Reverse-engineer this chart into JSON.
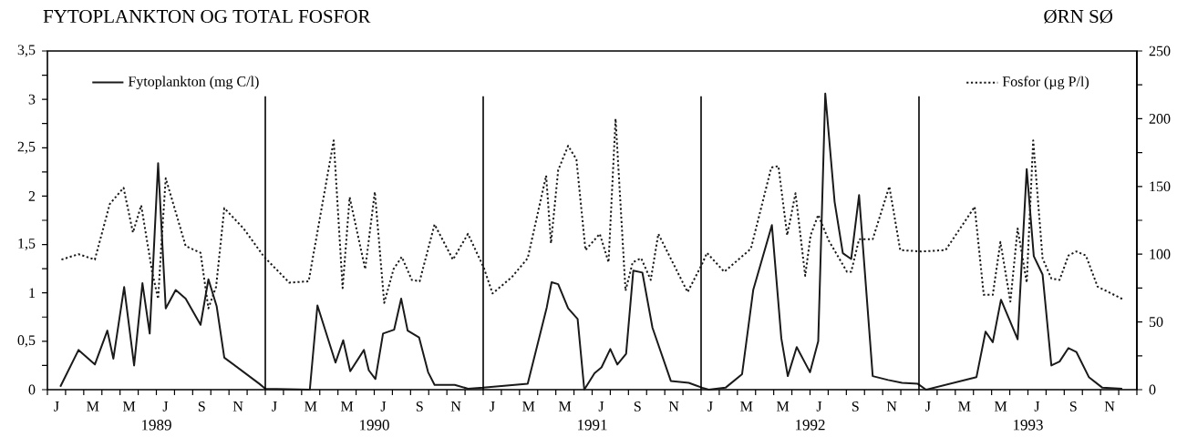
{
  "chart_data": {
    "type": "line",
    "title": "FYTOPLANKTON OG TOTAL FOSFOR",
    "subtitle": "ØRN SØ",
    "annotations": [
      "J",
      "M",
      "M",
      "J",
      "S",
      "N",
      "J",
      "M",
      "M",
      "J",
      "S",
      "N",
      "J",
      "M",
      "M",
      "J",
      "S",
      "N",
      "J",
      "M",
      "M",
      "J",
      "S",
      "N",
      "J",
      "M",
      "M",
      "J",
      "S",
      "N"
    ],
    "legend": "top",
    "xlim": [
      "1989-01-01",
      "1994-01-01"
    ],
    "xticks": [
      {
        "value": "1989-01-01",
        "label": null
      },
      {
        "value": "1989-02-01",
        "label": null
      },
      {
        "value": "1989-03-01",
        "label": null
      },
      {
        "value": "1989-04-01",
        "label": null
      },
      {
        "value": "1989-05-01",
        "label": null
      },
      {
        "value": "1989-06-01",
        "label": null
      },
      {
        "value": "1989-07-01",
        "label": "1989"
      },
      {
        "value": "1989-08-01",
        "label": null
      },
      {
        "value": "1989-09-01",
        "label": null
      },
      {
        "value": "1989-10-01",
        "label": null
      },
      {
        "value": "1989-11-01",
        "label": null
      },
      {
        "value": "1989-12-01",
        "label": null
      },
      {
        "value": "1990-01-01",
        "label": null
      },
      {
        "value": "1990-02-01",
        "label": null
      },
      {
        "value": "1990-03-01",
        "label": null
      },
      {
        "value": "1990-04-01",
        "label": null
      },
      {
        "value": "1990-05-01",
        "label": null
      },
      {
        "value": "1990-06-01",
        "label": null
      },
      {
        "value": "1990-07-01",
        "label": "1990"
      },
      {
        "value": "1990-08-01",
        "label": null
      },
      {
        "value": "1990-09-01",
        "label": null
      },
      {
        "value": "1990-10-01",
        "label": null
      },
      {
        "value": "1990-11-01",
        "label": null
      },
      {
        "value": "1990-12-01",
        "label": null
      },
      {
        "value": "1991-01-01",
        "label": null
      },
      {
        "value": "1991-02-01",
        "label": null
      },
      {
        "value": "1991-03-01",
        "label": null
      },
      {
        "value": "1991-04-01",
        "label": null
      },
      {
        "value": "1991-05-01",
        "label": null
      },
      {
        "value": "1991-06-01",
        "label": null
      },
      {
        "value": "1991-07-01",
        "label": "1991"
      },
      {
        "value": "1991-08-01",
        "label": null
      },
      {
        "value": "1991-09-01",
        "label": null
      },
      {
        "value": "1991-10-01",
        "label": null
      },
      {
        "value": "1991-11-01",
        "label": null
      },
      {
        "value": "1991-12-01",
        "label": null
      },
      {
        "value": "1992-01-01",
        "label": null
      },
      {
        "value": "1992-02-01",
        "label": null
      },
      {
        "value": "1992-03-01",
        "label": null
      },
      {
        "value": "1992-04-01",
        "label": null
      },
      {
        "value": "1992-05-01",
        "label": null
      },
      {
        "value": "1992-06-01",
        "label": null
      },
      {
        "value": "1992-07-01",
        "label": "1992"
      },
      {
        "value": "1992-08-01",
        "label": null
      },
      {
        "value": "1992-09-01",
        "label": null
      },
      {
        "value": "1992-10-01",
        "label": null
      },
      {
        "value": "1992-11-01",
        "label": null
      },
      {
        "value": "1992-12-01",
        "label": null
      },
      {
        "value": "1993-01-01",
        "label": null
      },
      {
        "value": "1993-02-01",
        "label": null
      },
      {
        "value": "1993-03-01",
        "label": null
      },
      {
        "value": "1993-04-01",
        "label": null
      },
      {
        "value": "1993-05-01",
        "label": null
      },
      {
        "value": "1993-06-01",
        "label": null
      },
      {
        "value": "1993-07-01",
        "label": "1993"
      },
      {
        "value": "1993-08-01",
        "label": null
      },
      {
        "value": "1993-09-01",
        "label": null
      },
      {
        "value": "1993-10-01",
        "label": null
      },
      {
        "value": "1993-11-01",
        "label": null
      },
      {
        "value": "1993-12-01",
        "label": null
      },
      {
        "value": "1994-01-01",
        "label": null
      }
    ],
    "ylim": [
      0,
      3.5
    ],
    "yticks": [
      {
        "value": 0,
        "label": "0"
      },
      {
        "value": 0.25,
        "label": null
      },
      {
        "value": 0.5,
        "label": "0,5"
      },
      {
        "value": 0.75,
        "label": null
      },
      {
        "value": 1,
        "label": "1"
      },
      {
        "value": 1.25,
        "label": null
      },
      {
        "value": 1.5,
        "label": "1,5"
      },
      {
        "value": 1.75,
        "label": null
      },
      {
        "value": 2,
        "label": "2"
      },
      {
        "value": 2.25,
        "label": null
      },
      {
        "value": 2.5,
        "label": "2,5"
      },
      {
        "value": 2.75,
        "label": null
      },
      {
        "value": 3,
        "label": "3"
      },
      {
        "value": 3.25,
        "label": null
      },
      {
        "value": 3.5,
        "label": "3,5"
      }
    ],
    "y2lim": [
      0,
      250
    ],
    "y2ticks": [
      0,
      {
        "value": 25,
        "label": null
      },
      50,
      {
        "value": 75,
        "label": null
      },
      100,
      {
        "value": 125,
        "label": null
      },
      150,
      {
        "value": 175,
        "label": null
      },
      200,
      {
        "value": 225,
        "label": null
      },
      250
    ],
    "ref_lines": [
      {
        "axis": "x",
        "value": "1990-01-01"
      },
      {
        "axis": "x",
        "value": "1991-01-01"
      },
      {
        "axis": "x",
        "value": "1992-01-01"
      },
      {
        "axis": "x",
        "value": "1993-01-01"
      }
    ],
    "series": [
      {
        "name": "Fytoplankton (mg C/l)",
        "color": "#1a1a1a",
        "line_style": "solid",
        "axis": "y",
        "x": [
          "1989-01-23",
          "1989-02-21",
          "1989-03-20",
          "1989-04-10",
          "1989-04-20",
          "1989-05-08",
          "1989-05-25",
          "1989-06-08",
          "1989-06-20",
          "1989-07-04",
          "1989-07-17",
          "1989-08-03",
          "1989-08-20",
          "1989-09-14",
          "1989-09-27",
          "1989-10-11",
          "1989-10-24",
          "1989-12-22",
          "1990-01-01",
          "1990-03-15",
          "1990-03-28",
          "1990-04-27",
          "1990-05-10",
          "1990-05-22",
          "1990-06-14",
          "1990-06-22",
          "1990-07-03",
          "1990-07-16",
          "1990-08-04",
          "1990-08-16",
          "1990-08-27",
          "1990-09-15",
          "1990-09-30",
          "1990-10-11",
          "1990-11-14",
          "1990-12-06",
          "1991-01-01",
          "1991-03-15",
          "1991-04-16",
          "1991-04-24",
          "1991-05-05",
          "1991-05-22",
          "1991-06-07",
          "1991-06-18",
          "1991-07-05",
          "1991-07-17",
          "1991-08-01",
          "1991-08-13",
          "1991-08-28",
          "1991-09-09",
          "1991-09-24",
          "1991-10-11",
          "1991-11-11",
          "1991-12-11",
          "1992-01-03",
          "1992-01-14",
          "1992-02-11",
          "1992-03-09",
          "1992-03-28",
          "1992-04-28",
          "1992-05-14",
          "1992-05-25",
          "1992-06-09",
          "1992-07-01",
          "1992-07-15",
          "1992-07-27",
          "1992-08-12",
          "1992-08-26",
          "1992-09-09",
          "1992-09-22",
          "1992-10-15",
          "1992-11-10",
          "1992-12-03",
          "1992-12-30",
          "1993-01-13",
          "1993-04-06",
          "1993-04-21",
          "1993-05-03",
          "1993-05-17",
          "1993-06-14",
          "1993-06-29",
          "1993-07-11",
          "1993-07-26",
          "1993-08-10",
          "1993-08-24",
          "1993-09-08",
          "1993-09-21",
          "1993-10-12",
          "1993-11-04",
          "1993-12-07"
        ],
        "values": [
          0.03,
          0.41,
          0.26,
          0.61,
          0.32,
          1.06,
          0.25,
          1.1,
          0.58,
          2.34,
          0.84,
          1.03,
          0.94,
          0.67,
          1.14,
          0.86,
          0.33,
          0.06,
          0.01,
          0.0,
          0.87,
          0.28,
          0.51,
          0.19,
          0.41,
          0.2,
          0.11,
          0.58,
          0.62,
          0.94,
          0.61,
          0.54,
          0.18,
          0.05,
          0.05,
          0.01,
          0.02,
          0.06,
          0.85,
          1.11,
          1.09,
          0.84,
          0.73,
          0.0,
          0.17,
          0.23,
          0.42,
          0.26,
          0.37,
          1.23,
          1.21,
          0.64,
          0.09,
          0.07,
          0.02,
          0.0,
          0.02,
          0.16,
          1.03,
          1.7,
          0.53,
          0.14,
          0.44,
          0.18,
          0.5,
          3.06,
          1.94,
          1.41,
          1.35,
          2.01,
          0.14,
          0.1,
          0.07,
          0.06,
          0.0,
          0.13,
          0.6,
          0.49,
          0.93,
          0.52,
          2.28,
          1.38,
          1.19,
          0.25,
          0.29,
          0.43,
          0.39,
          0.13,
          0.02,
          0.01
        ]
      },
      {
        "name": "Fosfor (µg P/l)",
        "color": "#1a1a1a",
        "line_style": "dotted",
        "axis": "y2",
        "x": [
          "1989-01-25",
          "1989-02-21",
          "1989-03-20",
          "1989-04-14",
          "1989-05-07",
          "1989-05-23",
          "1989-06-06",
          "1989-06-24",
          "1989-07-04",
          "1989-07-10",
          "1989-07-17",
          "1989-07-30",
          "1989-08-20",
          "1989-09-14",
          "1989-09-27",
          "1989-10-10",
          "1989-10-24",
          "1989-11-25",
          "1989-12-30",
          "1990-02-10",
          "1990-03-13",
          "1990-04-24",
          "1990-05-09",
          "1990-05-21",
          "1990-06-16",
          "1990-07-02",
          "1990-07-18",
          "1990-08-03",
          "1990-08-17",
          "1990-09-03",
          "1990-09-16",
          "1990-10-11",
          "1990-11-11",
          "1990-12-06",
          "1991-01-02",
          "1991-01-17",
          "1991-02-17",
          "1991-03-15",
          "1991-04-15",
          "1991-04-23",
          "1991-05-05",
          "1991-05-22",
          "1991-06-05",
          "1991-06-20",
          "1991-07-14",
          "1991-07-29",
          "1991-08-10",
          "1991-08-27",
          "1991-09-08",
          "1991-09-22",
          "1991-10-08",
          "1991-10-21",
          "1991-12-09",
          "1992-01-03",
          "1992-01-11",
          "1992-02-09",
          "1992-03-24",
          "1992-04-27",
          "1992-05-09",
          "1992-05-24",
          "1992-06-07",
          "1992-06-23",
          "1992-07-02",
          "1992-07-15",
          "1992-08-02",
          "1992-09-02",
          "1992-09-09",
          "1992-09-22",
          "1992-10-15",
          "1992-11-12",
          "1992-11-30",
          "1993-01-05",
          "1993-02-14",
          "1993-04-03",
          "1993-04-18",
          "1993-05-03",
          "1993-05-16",
          "1993-06-02",
          "1993-06-14",
          "1993-06-29",
          "1993-07-10",
          "1993-07-26",
          "1993-08-10",
          "1993-08-24",
          "1993-09-08",
          "1993-09-21",
          "1993-10-07",
          "1993-10-27",
          "1993-12-07"
        ],
        "values": [
          96,
          100,
          96,
          137,
          149,
          116,
          136,
          87,
          67,
          110,
          156,
          137,
          106,
          101,
          60,
          76,
          134,
          119,
          98,
          79,
          80,
          184,
          75,
          142,
          89,
          146,
          64,
          89,
          98,
          81,
          80,
          122,
          96,
          115,
          90,
          71,
          83,
          97,
          158,
          108,
          162,
          180,
          170,
          103,
          115,
          94,
          200,
          73,
          94,
          97,
          81,
          115,
          72,
          93,
          101,
          87,
          104,
          164,
          165,
          114,
          145,
          84,
          114,
          129,
          110,
          87,
          87,
          111,
          111,
          150,
          103,
          102,
          103,
          135,
          70,
          70,
          109,
          65,
          119,
          79,
          184,
          97,
          82,
          81,
          99,
          102,
          99,
          76,
          67
        ]
      }
    ]
  }
}
